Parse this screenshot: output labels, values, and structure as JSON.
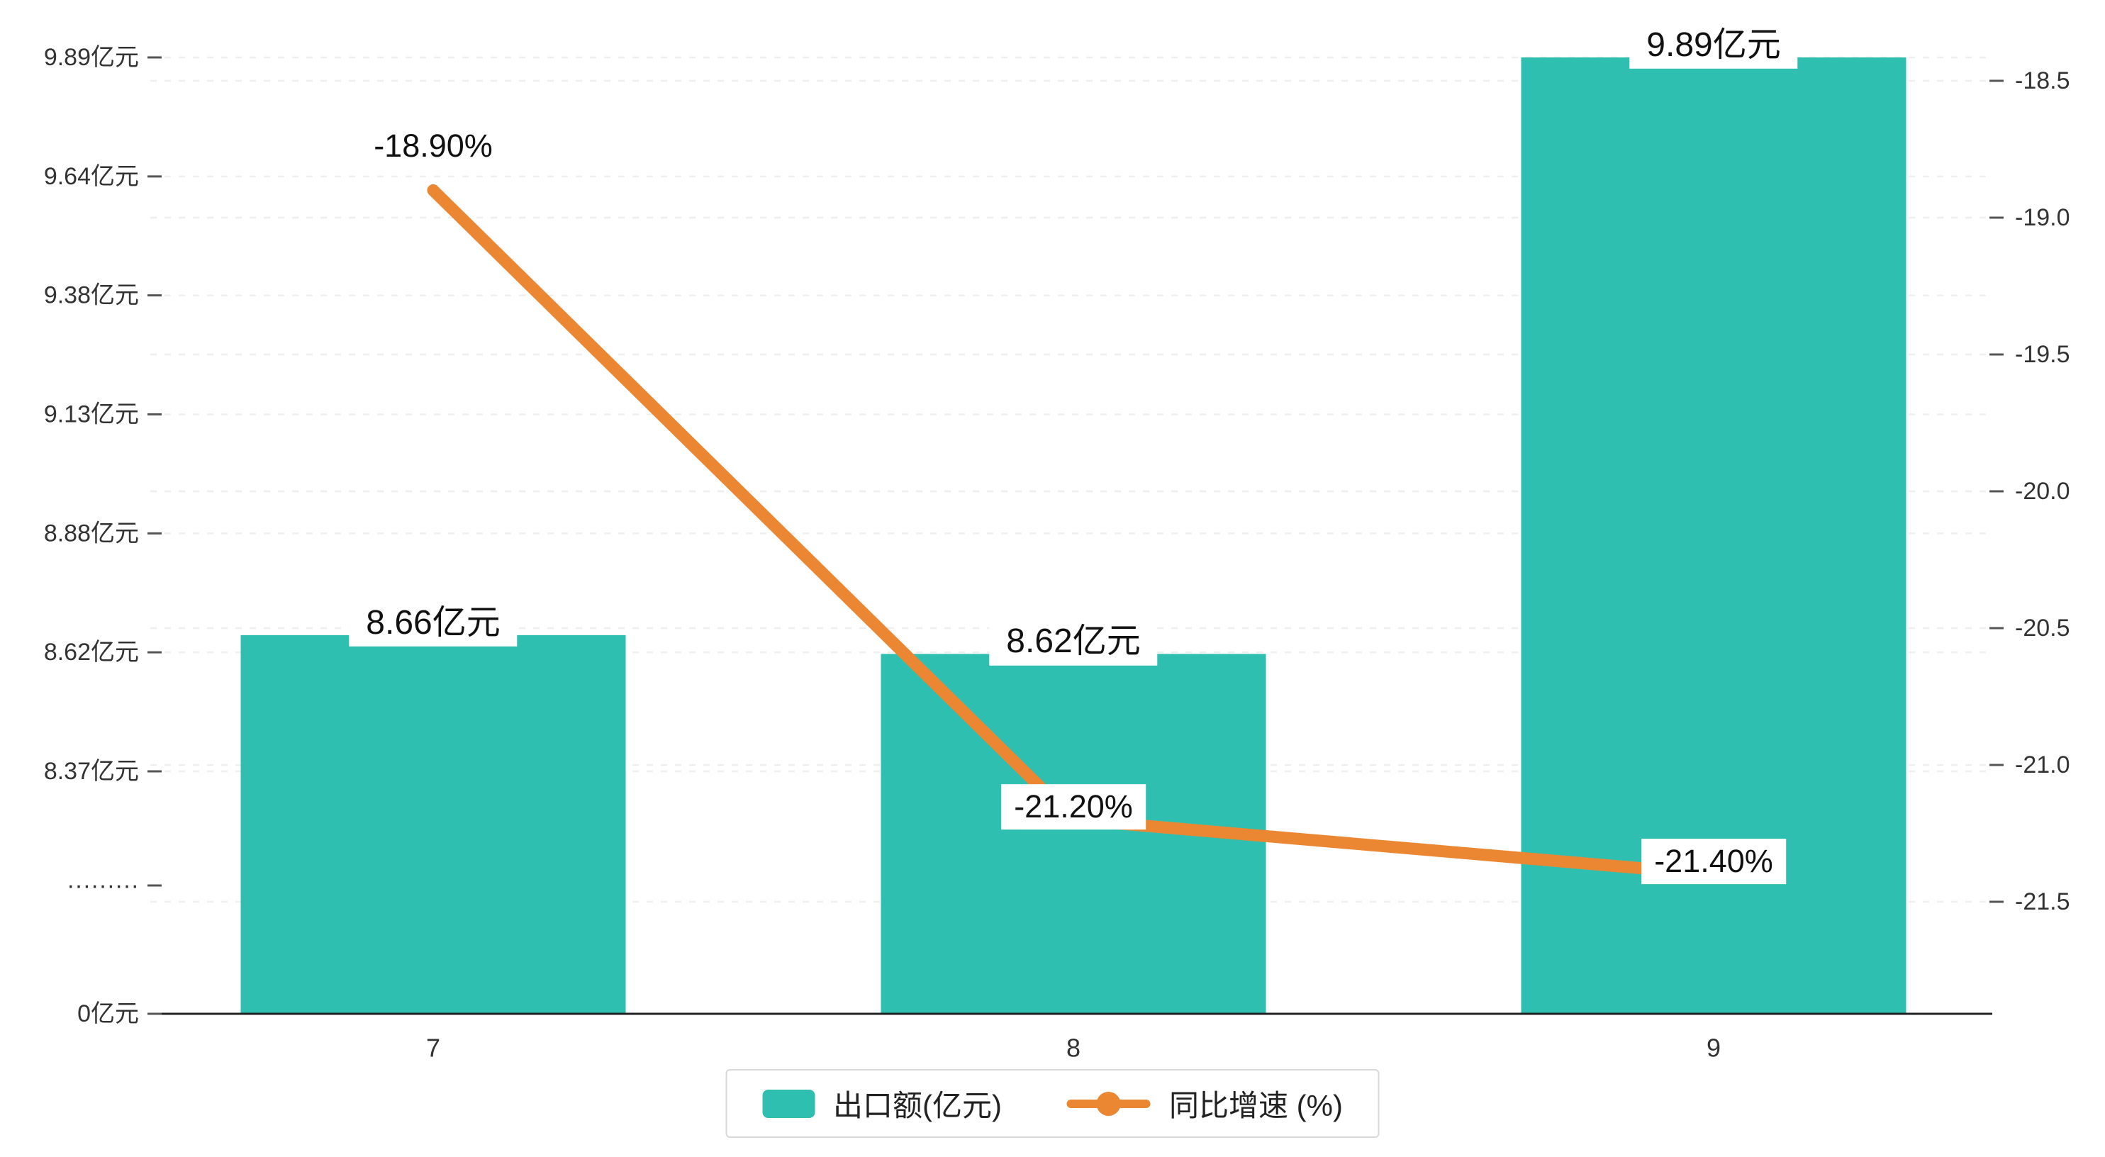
{
  "chart_data": {
    "type": "bar",
    "subtype": "bar-line-combo",
    "title": "",
    "categories": [
      "7",
      "8",
      "9"
    ],
    "series": [
      {
        "name": "出口额(亿元)",
        "type": "bar",
        "axis": "left",
        "values": [
          8.66,
          8.62,
          9.89
        ],
        "data_labels": [
          "8.66亿元",
          "8.62亿元",
          "9.89亿元"
        ],
        "color": "#2fbfb0"
      },
      {
        "name": "同比增速 (%)",
        "type": "line",
        "axis": "right",
        "values": [
          -18.9,
          -21.2,
          -21.4
        ],
        "data_labels": [
          "-18.90%",
          "-21.20%",
          "-21.40%"
        ],
        "color": "#eb8733"
      }
    ],
    "left_axis": {
      "unit": "亿元",
      "break": true,
      "range_upper": [
        8.37,
        9.89
      ],
      "tick_labels_top_to_bottom": [
        "9.89亿元",
        "9.64亿元",
        "9.38亿元",
        "9.13亿元",
        "8.88亿元",
        "8.62亿元",
        "8.37亿元",
        "·········",
        "0亿元"
      ]
    },
    "right_axis": {
      "min": -21.5,
      "max": -18.5,
      "tick_labels_top_to_bottom": [
        "-18.5",
        "-19.0",
        "-19.5",
        "-20.0",
        "-20.5",
        "-21.0",
        "-21.5"
      ]
    },
    "legend": {
      "position": "bottom-center",
      "items": [
        {
          "label": "出口额(亿元)",
          "marker": "bar-swatch",
          "color": "#2fbfb0"
        },
        {
          "label": "同比增速 (%)",
          "marker": "line-dot",
          "color": "#eb8733"
        }
      ]
    },
    "grid": "dashed-horizontal",
    "background": "#ffffff"
  }
}
